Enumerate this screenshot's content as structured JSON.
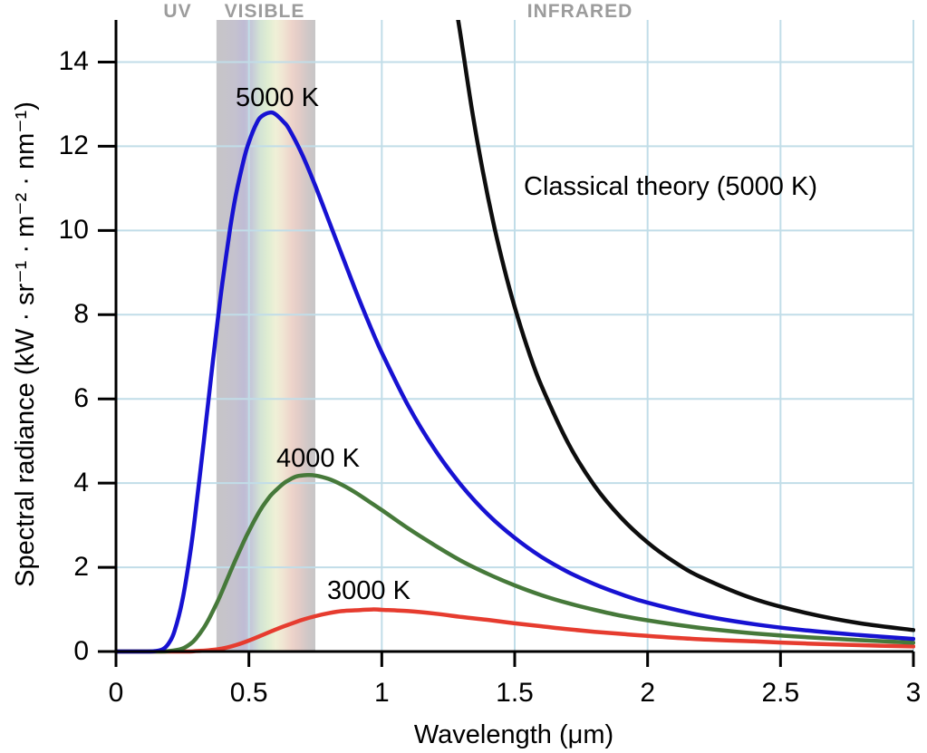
{
  "bands": {
    "uv": "UV",
    "visible": "VISIBLE",
    "infrared": "INFRARED",
    "label_color": "#9c9c9c"
  },
  "axes": {
    "x": {
      "label": "Wavelength (μm)",
      "tick_labels": [
        "0",
        "0.5",
        "1",
        "1.5",
        "2",
        "2.5",
        "3"
      ],
      "tick_values": [
        0,
        0.5,
        1,
        1.5,
        2,
        2.5,
        3
      ]
    },
    "y": {
      "label": "Spectral radiance (kW · sr⁻¹ · m⁻² · nm⁻¹)",
      "tick_labels": [
        "0",
        "2",
        "4",
        "6",
        "8",
        "10",
        "12",
        "14"
      ],
      "tick_values": [
        0,
        2,
        4,
        6,
        8,
        10,
        12,
        14
      ]
    }
  },
  "colors": {
    "grid": "#c1dde8",
    "axis": "#000000",
    "blue_curve": "#1712d2",
    "green_curve": "#46793a",
    "red_curve": "#e63c2f",
    "classical_curve": "#0d0d0d"
  },
  "chart_data": {
    "type": "line",
    "title": "",
    "xlabel": "Wavelength (μm)",
    "ylabel": "Spectral radiance (kW · sr⁻¹ · m⁻² · nm⁻¹)",
    "xlim": [
      0,
      3
    ],
    "ylim": [
      0,
      15
    ],
    "grid": true,
    "x_gridlines_um": [
      0.5,
      1,
      1.5,
      2,
      2.5,
      3
    ],
    "y_gridlines": [
      2,
      4,
      6,
      8,
      10,
      12,
      14
    ],
    "visible_band": {
      "from_um": 0.378,
      "to_um": 0.75,
      "stops": [
        {
          "o": 0.0,
          "c": "#c6c5c7"
        },
        {
          "o": 0.18,
          "c": "#c5c2ce"
        },
        {
          "o": 0.28,
          "c": "#bfbcd5"
        },
        {
          "o": 0.36,
          "c": "#c6cad8"
        },
        {
          "o": 0.44,
          "c": "#d3e3d4"
        },
        {
          "o": 0.52,
          "c": "#dfedd2"
        },
        {
          "o": 0.6,
          "c": "#eff0d7"
        },
        {
          "o": 0.68,
          "c": "#f0e4d2"
        },
        {
          "o": 0.76,
          "c": "#edd3ca"
        },
        {
          "o": 0.85,
          "c": "#e0cbc7"
        },
        {
          "o": 0.93,
          "c": "#cfc7c7"
        },
        {
          "o": 1.0,
          "c": "#c7c6c7"
        }
      ]
    },
    "series": [
      {
        "name": "5000 K",
        "color": "#1712d2",
        "x": [
          0,
          0.1,
          0.15,
          0.18,
          0.2,
          0.22,
          0.25,
          0.28,
          0.3,
          0.33,
          0.35,
          0.38,
          0.4,
          0.43,
          0.45,
          0.48,
          0.5,
          0.53,
          0.55,
          0.58,
          0.6,
          0.63,
          0.65,
          0.7,
          0.75,
          0.8,
          0.85,
          0.9,
          0.95,
          1.0,
          1.1,
          1.2,
          1.3,
          1.4,
          1.5,
          1.6,
          1.7,
          1.8,
          1.9,
          2.0,
          2.2,
          2.4,
          2.6,
          2.8,
          3.0
        ],
        "y": [
          0,
          0,
          0.01,
          0.07,
          0.21,
          0.48,
          1.22,
          2.37,
          3.35,
          4.97,
          6.09,
          7.73,
          8.74,
          10.07,
          10.81,
          11.66,
          12.1,
          12.56,
          12.72,
          12.8,
          12.76,
          12.58,
          12.42,
          11.81,
          11.06,
          10.24,
          9.42,
          8.6,
          7.82,
          7.1,
          5.83,
          4.79,
          3.94,
          3.25,
          2.7,
          2.25,
          1.89,
          1.6,
          1.36,
          1.16,
          0.86,
          0.65,
          0.5,
          0.39,
          0.3
        ]
      },
      {
        "name": "4000 K",
        "color": "#46793a",
        "x": [
          0,
          0.15,
          0.2,
          0.25,
          0.28,
          0.3,
          0.33,
          0.35,
          0.38,
          0.4,
          0.43,
          0.45,
          0.48,
          0.5,
          0.53,
          0.55,
          0.58,
          0.6,
          0.63,
          0.65,
          0.68,
          0.72,
          0.75,
          0.8,
          0.85,
          0.9,
          0.95,
          1.0,
          1.1,
          1.2,
          1.3,
          1.4,
          1.5,
          1.6,
          1.7,
          1.8,
          1.9,
          2.0,
          2.2,
          2.4,
          2.6,
          2.8,
          3.0
        ],
        "y": [
          0,
          0,
          0.01,
          0.07,
          0.18,
          0.3,
          0.56,
          0.78,
          1.16,
          1.44,
          1.89,
          2.18,
          2.6,
          2.86,
          3.22,
          3.43,
          3.69,
          3.82,
          3.99,
          4.07,
          4.16,
          4.19,
          4.18,
          4.1,
          3.96,
          3.78,
          3.57,
          3.36,
          2.92,
          2.52,
          2.15,
          1.84,
          1.57,
          1.34,
          1.15,
          0.99,
          0.85,
          0.74,
          0.56,
          0.43,
          0.34,
          0.27,
          0.21
        ]
      },
      {
        "name": "3000 K",
        "color": "#e63c2f",
        "x": [
          0,
          0.25,
          0.3,
          0.35,
          0.4,
          0.45,
          0.5,
          0.55,
          0.6,
          0.65,
          0.7,
          0.75,
          0.8,
          0.85,
          0.9,
          0.97,
          1.0,
          1.1,
          1.2,
          1.3,
          1.4,
          1.5,
          1.6,
          1.7,
          1.8,
          1.9,
          2.0,
          2.2,
          2.4,
          2.6,
          2.8,
          3.0
        ],
        "y": [
          0,
          0,
          0.01,
          0.03,
          0.07,
          0.15,
          0.26,
          0.39,
          0.52,
          0.64,
          0.75,
          0.84,
          0.91,
          0.96,
          0.98,
          1.0,
          0.99,
          0.96,
          0.9,
          0.82,
          0.75,
          0.67,
          0.6,
          0.53,
          0.47,
          0.42,
          0.37,
          0.29,
          0.24,
          0.19,
          0.15,
          0.12
        ]
      },
      {
        "name": "Classical theory (5000 K)",
        "color": "#0d0d0d",
        "x": [
          1.286,
          1.3,
          1.34,
          1.38,
          1.42,
          1.46,
          1.5,
          1.55,
          1.6,
          1.7,
          1.8,
          1.9,
          2.0,
          2.1,
          2.2,
          2.4,
          2.6,
          2.8,
          3.0
        ],
        "y": [
          15.05,
          14.49,
          12.83,
          11.41,
          10.18,
          9.11,
          8.18,
          7.17,
          6.32,
          4.96,
          3.94,
          3.18,
          2.59,
          2.13,
          1.77,
          1.25,
          0.91,
          0.67,
          0.51
        ]
      }
    ]
  }
}
